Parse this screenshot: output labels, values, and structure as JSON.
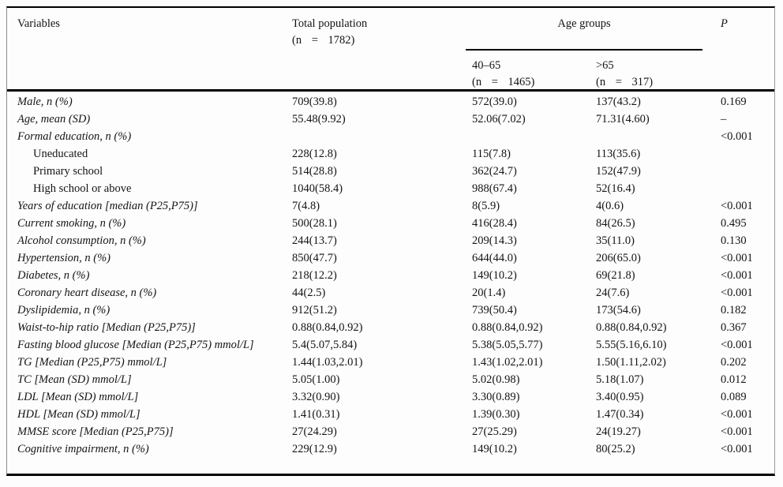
{
  "page": {
    "background": "#fdfdfd",
    "text_color": "#141414",
    "rule_color": "#000000"
  },
  "header": {
    "variables_label": "Variables",
    "total_label": "Total population",
    "total_n": "(n = 1782)",
    "age_groups_label": "Age groups",
    "group1_label": "40–65",
    "group1_n": "(n = 1465)",
    "group2_label": ">65",
    "group2_n": "(n = 317)",
    "p_label": "P"
  },
  "table": {
    "columns": [
      "Variables",
      "Total population (n = 1782)",
      "40–65 (n = 1465)",
      ">65 (n = 317)",
      "P"
    ],
    "rows": [
      {
        "label": "Male, n (%)",
        "italic": true,
        "indent": false,
        "total": "709(39.8)",
        "group1": "572(39.0)",
        "group2": "137(43.2)",
        "p": "0.169"
      },
      {
        "label": "Age, mean (SD)",
        "italic": true,
        "indent": false,
        "total": "55.48(9.92)",
        "group1": "52.06(7.02)",
        "group2": "71.31(4.60)",
        "p": "–"
      },
      {
        "label": "Formal education, n (%)",
        "italic": true,
        "indent": false,
        "total": "",
        "group1": "",
        "group2": "",
        "p": "<0.001"
      },
      {
        "label": "Uneducated",
        "italic": false,
        "indent": true,
        "total": "228(12.8)",
        "group1": "115(7.8)",
        "group2": "113(35.6)",
        "p": ""
      },
      {
        "label": "Primary school",
        "italic": false,
        "indent": true,
        "total": "514(28.8)",
        "group1": "362(24.7)",
        "group2": "152(47.9)",
        "p": ""
      },
      {
        "label": "High school or above",
        "italic": false,
        "indent": true,
        "total": "1040(58.4)",
        "group1": "988(67.4)",
        "group2": "52(16.4)",
        "p": ""
      },
      {
        "label": "Years of education [median (P25,P75)]",
        "italic": true,
        "indent": false,
        "total": "7(4.8)",
        "group1": "8(5.9)",
        "group2": "4(0.6)",
        "p": "<0.001"
      },
      {
        "label": "Current smoking, n (%)",
        "italic": true,
        "indent": false,
        "total": "500(28.1)",
        "group1": "416(28.4)",
        "group2": "84(26.5)",
        "p": "0.495"
      },
      {
        "label": "Alcohol consumption, n (%)",
        "italic": true,
        "indent": false,
        "total": "244(13.7)",
        "group1": "209(14.3)",
        "group2": "35(11.0)",
        "p": "0.130"
      },
      {
        "label": "Hypertension, n (%)",
        "italic": true,
        "indent": false,
        "total": "850(47.7)",
        "group1": "644(44.0)",
        "group2": "206(65.0)",
        "p": "<0.001"
      },
      {
        "label": "Diabetes, n (%)",
        "italic": true,
        "indent": false,
        "total": "218(12.2)",
        "group1": "149(10.2)",
        "group2": "69(21.8)",
        "p": "<0.001"
      },
      {
        "label": "Coronary heart disease, n (%)",
        "italic": true,
        "indent": false,
        "total": "44(2.5)",
        "group1": "20(1.4)",
        "group2": "24(7.6)",
        "p": "<0.001"
      },
      {
        "label": "Dyslipidemia, n (%)",
        "italic": true,
        "indent": false,
        "total": "912(51.2)",
        "group1": "739(50.4)",
        "group2": "173(54.6)",
        "p": "0.182"
      },
      {
        "label": "Waist-to-hip ratio [Median (P25,P75)]",
        "italic": true,
        "indent": false,
        "total": "0.88(0.84,0.92)",
        "group1": "0.88(0.84,0.92)",
        "group2": "0.88(0.84,0.92)",
        "p": "0.367"
      },
      {
        "label": "Fasting blood glucose [Median (P25,P75) mmol/L]",
        "italic": true,
        "indent": false,
        "total": "5.4(5.07,5.84)",
        "group1": "5.38(5.05,5.77)",
        "group2": "5.55(5.16,6.10)",
        "p": "<0.001"
      },
      {
        "label": "TG [Median (P25,P75) mmol/L]",
        "italic": true,
        "indent": false,
        "total": "1.44(1.03,2.01)",
        "group1": "1.43(1.02,2.01)",
        "group2": "1.50(1.11,2.02)",
        "p": "0.202"
      },
      {
        "label": "TC [Mean (SD) mmol/L]",
        "italic": true,
        "indent": false,
        "total": "5.05(1.00)",
        "group1": "5.02(0.98)",
        "group2": "5.18(1.07)",
        "p": "0.012"
      },
      {
        "label": "LDL [Mean (SD) mmol/L]",
        "italic": true,
        "indent": false,
        "total": "3.32(0.90)",
        "group1": "3.30(0.89)",
        "group2": "3.40(0.95)",
        "p": "0.089"
      },
      {
        "label": "HDL [Mean (SD) mmol/L]",
        "italic": true,
        "indent": false,
        "total": "1.41(0.31)",
        "group1": "1.39(0.30)",
        "group2": "1.47(0.34)",
        "p": "<0.001"
      },
      {
        "label": "MMSE score [Median (P25,P75)]",
        "italic": true,
        "indent": false,
        "total": "27(24.29)",
        "group1": "27(25.29)",
        "group2": "24(19.27)",
        "p": "<0.001"
      },
      {
        "label": "Cognitive impairment, n (%)",
        "italic": true,
        "indent": false,
        "total": "229(12.9)",
        "group1": "149(10.2)",
        "group2": "80(25.2)",
        "p": "<0.001"
      }
    ]
  }
}
